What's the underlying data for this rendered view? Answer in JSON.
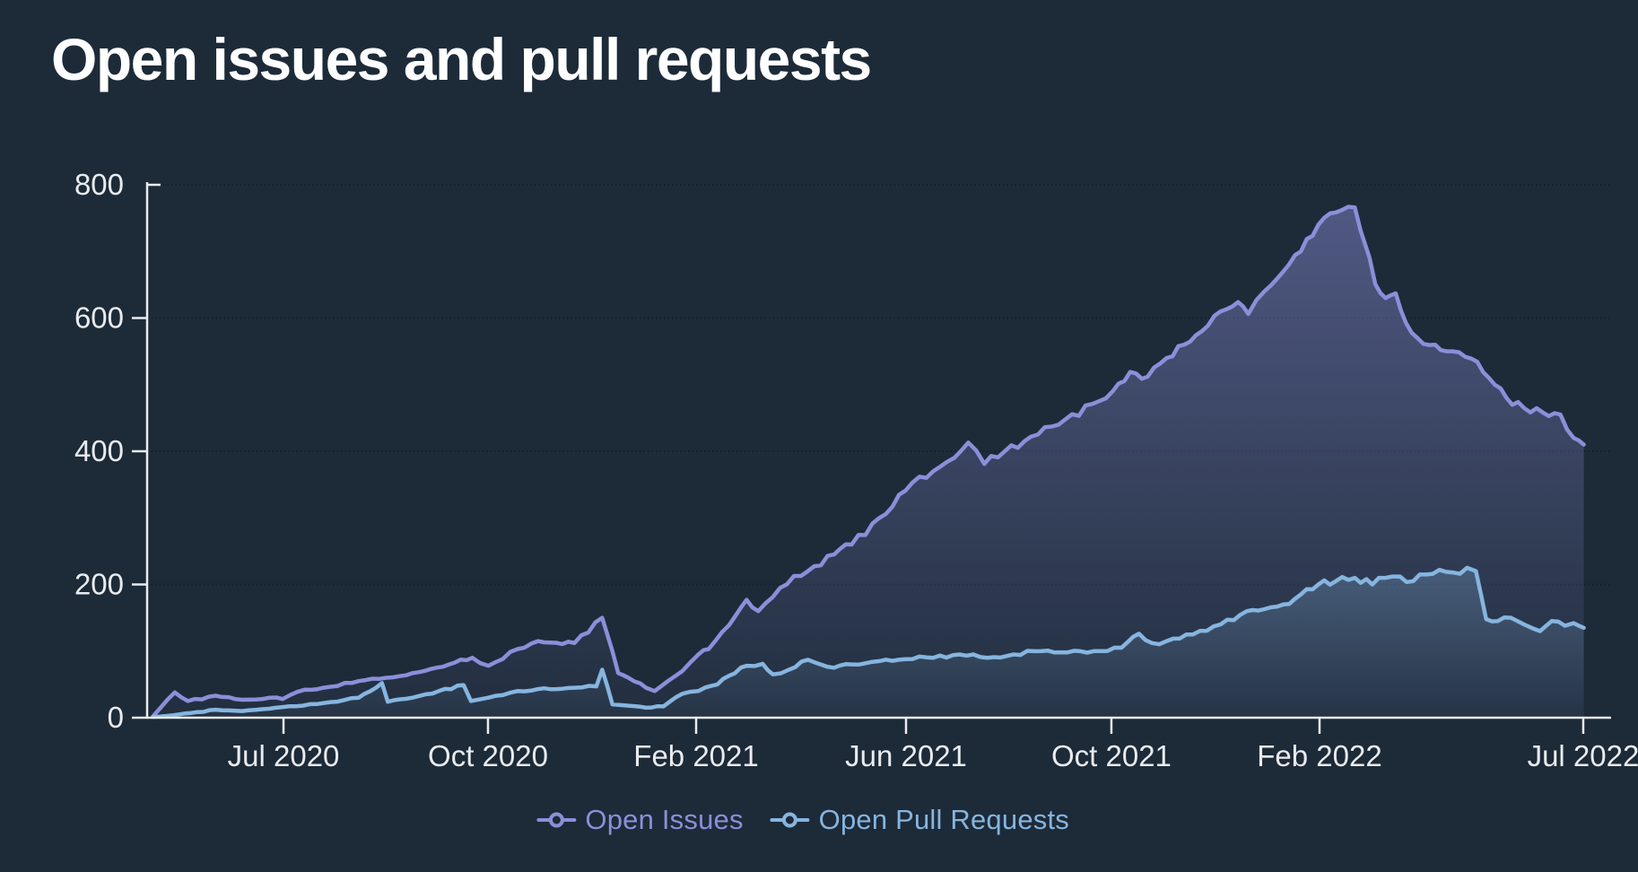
{
  "title": "Open issues and pull requests",
  "colors": {
    "background": "#1d2a38",
    "title": "#ffffff",
    "axis": "#e9ecef",
    "grid": "#0d1722",
    "issues": "#8b8fd9",
    "pull_requests": "#86b5df"
  },
  "legend": {
    "items": [
      {
        "label": "Open Issues",
        "color": "#8b8fd9"
      },
      {
        "label": "Open Pull Requests",
        "color": "#86b5df"
      }
    ]
  },
  "chart_data": {
    "type": "line",
    "title": "Open issues and pull requests",
    "xlabel": "",
    "ylabel": "",
    "x_range": [
      "Apr 2020",
      "Jul 2022"
    ],
    "ylim": [
      0,
      800
    ],
    "y_ticks": [
      800,
      600,
      400,
      200,
      0
    ],
    "x_ticks": [
      {
        "label": "Jul 2020",
        "f": 0.0935
      },
      {
        "label": "Oct 2020",
        "f": 0.2337
      },
      {
        "label": "Feb 2021",
        "f": 0.3764
      },
      {
        "label": "Jun 2021",
        "f": 0.5203
      },
      {
        "label": "Oct 2021",
        "f": 0.6611
      },
      {
        "label": "Feb 2022",
        "f": 0.8038
      },
      {
        "label": "Jul 2022",
        "f": 0.9846
      }
    ],
    "grid": "horizontal-dotted",
    "legend_position": "bottom",
    "note": "x of each point is fraction of time axis from Apr 2020 to Jul 2022; y estimated from gridlines",
    "series": [
      {
        "name": "Open Issues",
        "color": "#8b8fd9",
        "area": true,
        "points": [
          [
            0.004,
            2
          ],
          [
            0.019,
            38
          ],
          [
            0.028,
            25
          ],
          [
            0.047,
            33
          ],
          [
            0.065,
            27
          ],
          [
            0.084,
            30
          ],
          [
            0.093,
            28
          ],
          [
            0.108,
            42
          ],
          [
            0.121,
            45
          ],
          [
            0.145,
            55
          ],
          [
            0.164,
            60
          ],
          [
            0.182,
            67
          ],
          [
            0.207,
            80
          ],
          [
            0.223,
            90
          ],
          [
            0.234,
            78
          ],
          [
            0.254,
            103
          ],
          [
            0.268,
            115
          ],
          [
            0.293,
            112
          ],
          [
            0.312,
            150
          ],
          [
            0.319,
            100
          ],
          [
            0.323,
            67
          ],
          [
            0.33,
            60
          ],
          [
            0.342,
            45
          ],
          [
            0.348,
            40
          ],
          [
            0.357,
            55
          ],
          [
            0.367,
            70
          ],
          [
            0.378,
            95
          ],
          [
            0.385,
            103
          ],
          [
            0.399,
            139
          ],
          [
            0.411,
            177
          ],
          [
            0.419,
            160
          ],
          [
            0.434,
            195
          ],
          [
            0.453,
            220
          ],
          [
            0.471,
            245
          ],
          [
            0.483,
            260
          ],
          [
            0.502,
            300
          ],
          [
            0.52,
            341
          ],
          [
            0.539,
            370
          ],
          [
            0.563,
            413
          ],
          [
            0.574,
            381
          ],
          [
            0.588,
            400
          ],
          [
            0.606,
            422
          ],
          [
            0.625,
            440
          ],
          [
            0.648,
            471
          ],
          [
            0.662,
            490
          ],
          [
            0.674,
            519
          ],
          [
            0.686,
            512
          ],
          [
            0.699,
            540
          ],
          [
            0.711,
            560
          ],
          [
            0.723,
            580
          ],
          [
            0.736,
            610
          ],
          [
            0.748,
            624
          ],
          [
            0.755,
            606
          ],
          [
            0.766,
            640
          ],
          [
            0.779,
            670
          ],
          [
            0.791,
            700
          ],
          [
            0.803,
            740
          ],
          [
            0.811,
            757
          ],
          [
            0.819,
            762
          ],
          [
            0.828,
            766
          ],
          [
            0.832,
            731
          ],
          [
            0.838,
            691
          ],
          [
            0.842,
            651
          ],
          [
            0.849,
            630
          ],
          [
            0.856,
            637
          ],
          [
            0.863,
            593
          ],
          [
            0.871,
            570
          ],
          [
            0.883,
            560
          ],
          [
            0.895,
            550
          ],
          [
            0.908,
            539
          ],
          [
            0.92,
            510
          ],
          [
            0.932,
            480
          ],
          [
            0.944,
            465
          ],
          [
            0.957,
            458
          ],
          [
            0.969,
            455
          ],
          [
            0.978,
            420
          ],
          [
            0.985,
            410
          ]
        ]
      },
      {
        "name": "Open Pull Requests",
        "color": "#86b5df",
        "area": true,
        "points": [
          [
            0.004,
            0
          ],
          [
            0.022,
            5
          ],
          [
            0.047,
            12
          ],
          [
            0.065,
            10
          ],
          [
            0.093,
            16
          ],
          [
            0.121,
            22
          ],
          [
            0.145,
            30
          ],
          [
            0.161,
            52
          ],
          [
            0.165,
            24
          ],
          [
            0.182,
            30
          ],
          [
            0.2,
            40
          ],
          [
            0.217,
            49
          ],
          [
            0.222,
            25
          ],
          [
            0.234,
            30
          ],
          [
            0.254,
            40
          ],
          [
            0.268,
            43
          ],
          [
            0.293,
            45
          ],
          [
            0.308,
            47
          ],
          [
            0.312,
            72
          ],
          [
            0.319,
            20
          ],
          [
            0.33,
            18
          ],
          [
            0.342,
            15
          ],
          [
            0.354,
            17
          ],
          [
            0.367,
            36
          ],
          [
            0.378,
            40
          ],
          [
            0.391,
            50
          ],
          [
            0.399,
            63
          ],
          [
            0.411,
            78
          ],
          [
            0.422,
            81
          ],
          [
            0.429,
            65
          ],
          [
            0.44,
            72
          ],
          [
            0.453,
            87
          ],
          [
            0.471,
            75
          ],
          [
            0.483,
            80
          ],
          [
            0.502,
            85
          ],
          [
            0.52,
            88
          ],
          [
            0.539,
            90
          ],
          [
            0.557,
            95
          ],
          [
            0.576,
            90
          ],
          [
            0.594,
            95
          ],
          [
            0.613,
            100
          ],
          [
            0.631,
            98
          ],
          [
            0.649,
            100
          ],
          [
            0.668,
            105
          ],
          [
            0.68,
            126
          ],
          [
            0.689,
            112
          ],
          [
            0.699,
            115
          ],
          [
            0.717,
            125
          ],
          [
            0.736,
            140
          ],
          [
            0.754,
            160
          ],
          [
            0.766,
            163
          ],
          [
            0.779,
            170
          ],
          [
            0.791,
            185
          ],
          [
            0.803,
            200
          ],
          [
            0.815,
            205
          ],
          [
            0.828,
            210
          ],
          [
            0.84,
            200
          ],
          [
            0.849,
            210
          ],
          [
            0.859,
            212
          ],
          [
            0.868,
            205
          ],
          [
            0.877,
            215
          ],
          [
            0.886,
            222
          ],
          [
            0.895,
            218
          ],
          [
            0.905,
            225
          ],
          [
            0.911,
            220
          ],
          [
            0.918,
            148
          ],
          [
            0.926,
            145
          ],
          [
            0.935,
            150
          ],
          [
            0.944,
            140
          ],
          [
            0.955,
            130
          ],
          [
            0.963,
            145
          ],
          [
            0.972,
            138
          ],
          [
            0.978,
            142
          ],
          [
            0.985,
            135
          ]
        ]
      }
    ]
  }
}
